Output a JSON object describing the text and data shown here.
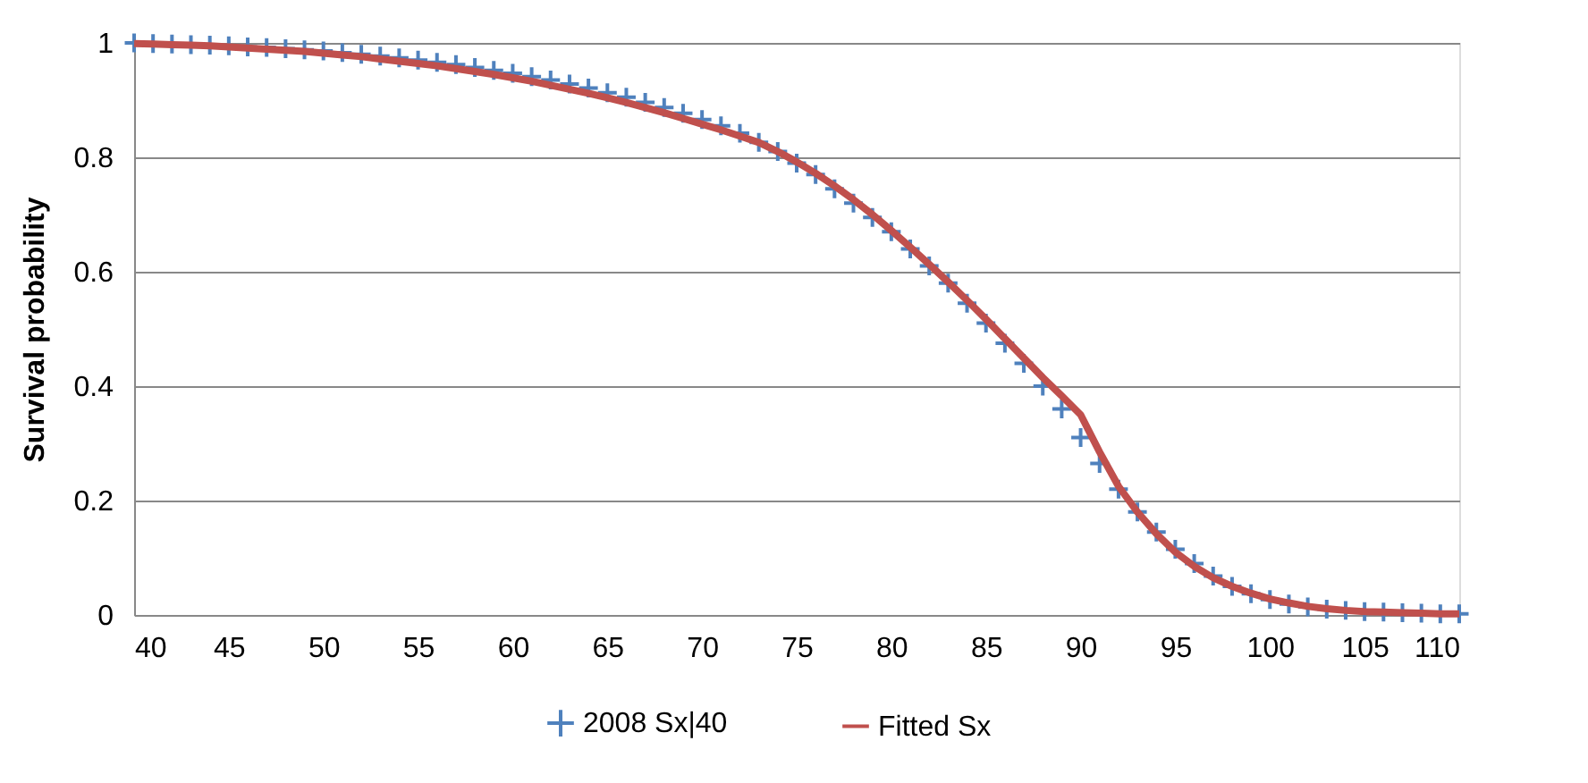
{
  "chart_data": {
    "type": "scatter",
    "ylabel": "Survival probability",
    "xlim": [
      40,
      110
    ],
    "xticks": [
      40,
      45,
      50,
      55,
      60,
      65,
      70,
      75,
      80,
      85,
      90,
      95,
      100,
      105,
      110
    ],
    "ylim": [
      0,
      1
    ],
    "yticks": [
      0,
      0.2,
      0.4,
      0.6,
      0.8,
      1
    ],
    "grid": "y",
    "legend": "bottom",
    "x": [
      40,
      41,
      42,
      43,
      44,
      45,
      46,
      47,
      48,
      49,
      50,
      51,
      52,
      53,
      54,
      55,
      56,
      57,
      58,
      59,
      60,
      61,
      62,
      63,
      64,
      65,
      66,
      67,
      68,
      69,
      70,
      71,
      72,
      73,
      74,
      75,
      76,
      77,
      78,
      79,
      80,
      81,
      82,
      83,
      84,
      85,
      86,
      87,
      88,
      89,
      90,
      91,
      92,
      93,
      94,
      95,
      96,
      97,
      98,
      99,
      100,
      101,
      102,
      103,
      104,
      105,
      106,
      107,
      108,
      109,
      110
    ],
    "series": [
      {
        "name": "2008 Sx|40",
        "marker": "cross",
        "color": "#4f81bd",
        "values": [
          1.0,
          0.999,
          0.998,
          0.997,
          0.996,
          0.995,
          0.993,
          0.992,
          0.99,
          0.988,
          0.986,
          0.983,
          0.98,
          0.977,
          0.974,
          0.97,
          0.966,
          0.962,
          0.957,
          0.952,
          0.947,
          0.941,
          0.935,
          0.928,
          0.921,
          0.913,
          0.905,
          0.896,
          0.887,
          0.877,
          0.866,
          0.855,
          0.842,
          0.826,
          0.81,
          0.79,
          0.77,
          0.745,
          0.72,
          0.695,
          0.67,
          0.64,
          0.61,
          0.58,
          0.545,
          0.51,
          0.475,
          0.44,
          0.4,
          0.36,
          0.31,
          0.265,
          0.22,
          0.18,
          0.145,
          0.115,
          0.09,
          0.068,
          0.05,
          0.037,
          0.027,
          0.019,
          0.014,
          0.01,
          0.008,
          0.006,
          0.005,
          0.004,
          0.003,
          0.002,
          0.002
        ]
      },
      {
        "name": "Fitted Sx",
        "type": "line",
        "marker": "none",
        "line_style": "solid",
        "color": "#c0504d",
        "values": [
          0.999,
          0.998,
          0.997,
          0.996,
          0.995,
          0.993,
          0.991,
          0.989,
          0.987,
          0.985,
          0.982,
          0.979,
          0.976,
          0.972,
          0.968,
          0.964,
          0.96,
          0.955,
          0.95,
          0.945,
          0.939,
          0.933,
          0.926,
          0.919,
          0.912,
          0.904,
          0.896,
          0.887,
          0.878,
          0.868,
          0.858,
          0.848,
          0.837,
          0.826,
          0.81,
          0.792,
          0.772,
          0.75,
          0.726,
          0.7,
          0.672,
          0.643,
          0.613,
          0.582,
          0.55,
          0.517,
          0.483,
          0.449,
          0.415,
          0.383,
          0.35,
          0.285,
          0.225,
          0.18,
          0.142,
          0.11,
          0.085,
          0.065,
          0.05,
          0.038,
          0.028,
          0.021,
          0.015,
          0.011,
          0.008,
          0.006,
          0.005,
          0.004,
          0.003,
          0.002,
          0.002
        ]
      }
    ]
  }
}
